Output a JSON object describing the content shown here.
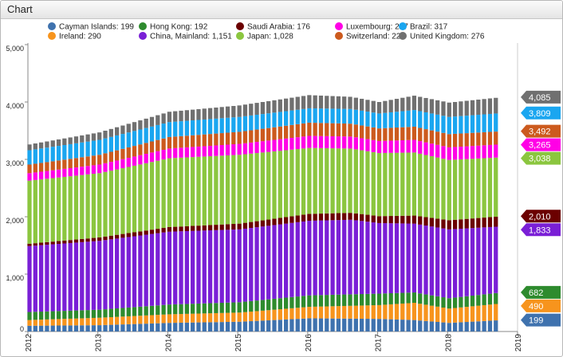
{
  "window": {
    "title": "Chart"
  },
  "chart_data": {
    "type": "stacked-bar",
    "title": "",
    "xlabel": "",
    "ylabel": "",
    "ylim": [
      0,
      5000
    ],
    "yticks": [
      "0",
      "1,000",
      "2,000",
      "3,000",
      "4,000",
      "5,000"
    ],
    "xticks": [
      "2012",
      "2013",
      "2014",
      "2015",
      "2016",
      "2017",
      "2018",
      "2019"
    ],
    "grid": false,
    "legend": "top",
    "x_start": "2012-01",
    "x_end": "2019-01",
    "bar_step_months": 1,
    "series": [
      {
        "name": "Cayman Islands",
        "last": "199",
        "color": "#3f72ae",
        "anchors": [
          [
            2012.0,
            100
          ],
          [
            2013.0,
            110
          ],
          [
            2014.0,
            150
          ],
          [
            2015.0,
            170
          ],
          [
            2016.0,
            230
          ],
          [
            2017.0,
            220
          ],
          [
            2017.5,
            200
          ],
          [
            2018.0,
            150
          ],
          [
            2018.75,
            199
          ]
        ]
      },
      {
        "name": "Ireland",
        "last": "290",
        "color": "#f7941d",
        "anchors": [
          [
            2012.0,
            100
          ],
          [
            2013.0,
            130
          ],
          [
            2014.0,
            150
          ],
          [
            2015.0,
            160
          ],
          [
            2016.0,
            200
          ],
          [
            2017.0,
            240
          ],
          [
            2017.5,
            300
          ],
          [
            2018.0,
            250
          ],
          [
            2018.75,
            290
          ]
        ]
      },
      {
        "name": "Hong Kong",
        "last": "192",
        "color": "#2e8b2e",
        "anchors": [
          [
            2012.0,
            140
          ],
          [
            2013.0,
            140
          ],
          [
            2014.0,
            170
          ],
          [
            2015.0,
            180
          ],
          [
            2016.0,
            200
          ],
          [
            2017.0,
            200
          ],
          [
            2017.5,
            180
          ],
          [
            2018.0,
            180
          ],
          [
            2018.75,
            192
          ]
        ]
      },
      {
        "name": "China, Mainland",
        "last": "1,151",
        "color": "#7a1fd6",
        "anchors": [
          [
            2012.0,
            1150
          ],
          [
            2013.0,
            1200
          ],
          [
            2014.0,
            1270
          ],
          [
            2015.0,
            1270
          ],
          [
            2016.0,
            1300
          ],
          [
            2016.6,
            1300
          ],
          [
            2017.0,
            1230
          ],
          [
            2017.5,
            1200
          ],
          [
            2018.0,
            1200
          ],
          [
            2018.75,
            1151
          ]
        ]
      },
      {
        "name": "Saudi Arabia",
        "last": "176",
        "color": "#6b0000",
        "anchors": [
          [
            2012.0,
            40
          ],
          [
            2013.0,
            60
          ],
          [
            2014.0,
            80
          ],
          [
            2015.0,
            100
          ],
          [
            2016.0,
            120
          ],
          [
            2017.0,
            120
          ],
          [
            2017.5,
            140
          ],
          [
            2018.0,
            160
          ],
          [
            2018.75,
            176
          ]
        ]
      },
      {
        "name": "Japan",
        "last": "1,028",
        "color": "#8bc63f",
        "anchors": [
          [
            2012.0,
            1100
          ],
          [
            2013.0,
            1120
          ],
          [
            2014.0,
            1200
          ],
          [
            2015.0,
            1200
          ],
          [
            2016.0,
            1150
          ],
          [
            2017.0,
            1100
          ],
          [
            2017.5,
            1100
          ],
          [
            2018.0,
            1050
          ],
          [
            2018.75,
            1028
          ]
        ]
      },
      {
        "name": "Luxembourg",
        "last": "227",
        "color": "#ff00e6",
        "anchors": [
          [
            2012.0,
            130
          ],
          [
            2013.0,
            150
          ],
          [
            2014.0,
            170
          ],
          [
            2015.0,
            190
          ],
          [
            2016.0,
            210
          ],
          [
            2017.0,
            210
          ],
          [
            2017.5,
            220
          ],
          [
            2018.0,
            220
          ],
          [
            2018.75,
            227
          ]
        ]
      },
      {
        "name": "Switzerland",
        "last": "227",
        "color": "#cc5a1e",
        "anchors": [
          [
            2012.0,
            150
          ],
          [
            2013.0,
            170
          ],
          [
            2014.0,
            200
          ],
          [
            2015.0,
            210
          ],
          [
            2016.0,
            230
          ],
          [
            2017.0,
            220
          ],
          [
            2017.5,
            230
          ],
          [
            2018.0,
            230
          ],
          [
            2018.75,
            227
          ]
        ]
      },
      {
        "name": "Brazil",
        "last": "317",
        "color": "#1aa6f0",
        "anchors": [
          [
            2012.0,
            250
          ],
          [
            2013.0,
            260
          ],
          [
            2014.0,
            260
          ],
          [
            2015.0,
            260
          ],
          [
            2016.0,
            250
          ],
          [
            2017.0,
            260
          ],
          [
            2017.5,
            290
          ],
          [
            2018.0,
            300
          ],
          [
            2018.75,
            317
          ]
        ]
      },
      {
        "name": "United Kingdom",
        "last": "276",
        "color": "#707070",
        "anchors": [
          [
            2012.0,
            100
          ],
          [
            2013.0,
            130
          ],
          [
            2014.0,
            180
          ],
          [
            2015.0,
            200
          ],
          [
            2016.0,
            230
          ],
          [
            2017.0,
            200
          ],
          [
            2017.5,
            250
          ],
          [
            2018.0,
            250
          ],
          [
            2018.75,
            276
          ]
        ]
      }
    ],
    "end_labels": [
      {
        "text": "4,085",
        "value": 4085,
        "color": "#707070"
      },
      {
        "text": "3,809",
        "value": 3809,
        "color": "#1aa6f0"
      },
      {
        "text": "3,492",
        "value": 3492,
        "color": "#cc5a1e"
      },
      {
        "text": "3,265",
        "value": 3265,
        "color": "#ff00e6"
      },
      {
        "text": "3,038",
        "value": 3038,
        "color": "#8bc63f"
      },
      {
        "text": "2,010",
        "value": 2010,
        "color": "#6b0000"
      },
      {
        "text": "1,833",
        "value": 1833,
        "color": "#7a1fd6"
      },
      {
        "text": "682",
        "value": 682,
        "color": "#2e8b2e"
      },
      {
        "text": "490",
        "value": 490,
        "color": "#f7941d"
      },
      {
        "text": "199",
        "value": 199,
        "color": "#3f72ae"
      }
    ]
  }
}
